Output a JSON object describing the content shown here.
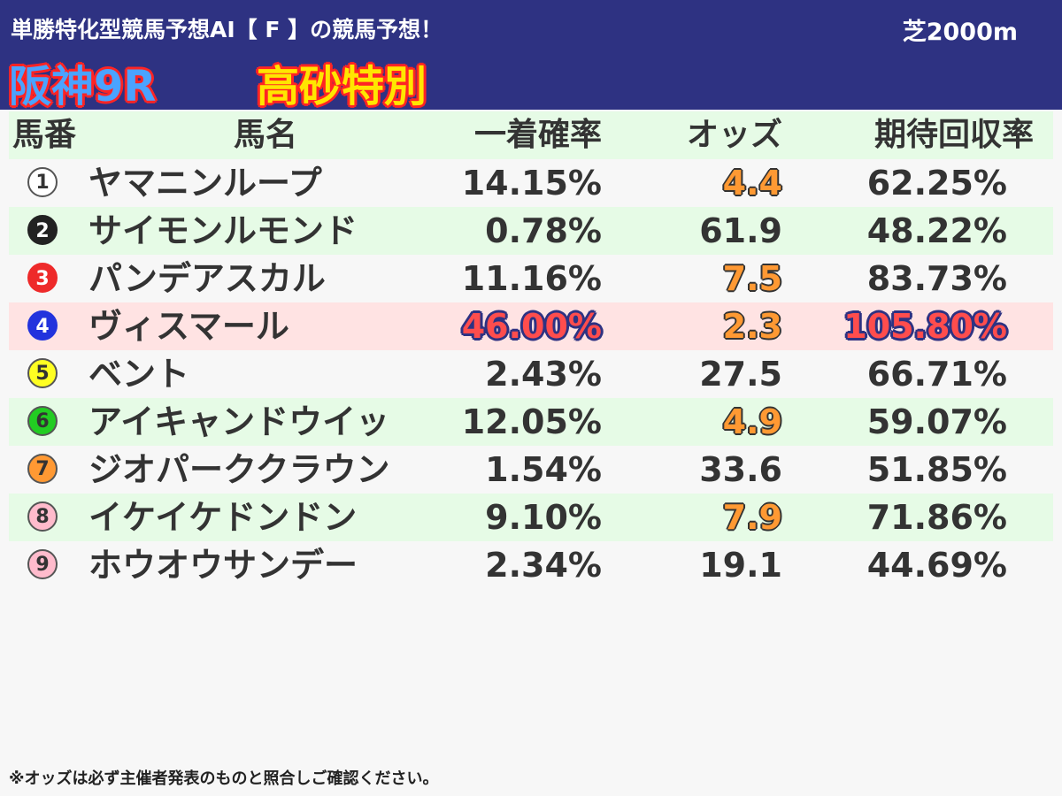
{
  "header": {
    "subtitle": "単勝特化型競馬予想AI【 F 】の競馬予想！",
    "course": "芝2000m",
    "race": "阪神9R",
    "race_name": "高砂特別"
  },
  "columns": {
    "no": "馬番",
    "name": "馬名",
    "prob": "一着確率",
    "odds": "オッズ",
    "ret": "期待回収率"
  },
  "colors": {
    "header_bg": "#2e3282",
    "row_alt_bg": "#e6fbe6",
    "highlight_bg": "#ffe3e3",
    "odds_hot": "#ff9933",
    "best_value": "#ff4d4d"
  },
  "rows": [
    {
      "no": "1",
      "name": "ヤマニンループ",
      "prob": "14.15%",
      "odds": "4.4",
      "ret": "62.25%",
      "circle_bg": "#ffffff",
      "circle_fg": "#333333",
      "circle_border": "#555555",
      "odds_hot": true
    },
    {
      "no": "2",
      "name": "サイモンルモンド",
      "prob": "0.78%",
      "odds": "61.9",
      "ret": "48.22%",
      "circle_bg": "#222222",
      "circle_fg": "#ffffff",
      "circle_border": "#222222"
    },
    {
      "no": "3",
      "name": "パンデアスカル",
      "prob": "11.16%",
      "odds": "7.5",
      "ret": "83.73%",
      "circle_bg": "#ee2a2a",
      "circle_fg": "#ffffff",
      "circle_border": "#ee2a2a",
      "odds_hot": true
    },
    {
      "no": "4",
      "name": "ヴィスマール",
      "prob": "46.00%",
      "odds": "2.3",
      "ret": "105.80%",
      "circle_bg": "#2233dd",
      "circle_fg": "#ffffff",
      "circle_border": "#2233dd",
      "odds_hot": true,
      "highlight": true
    },
    {
      "no": "5",
      "name": "ベント",
      "prob": "2.43%",
      "odds": "27.5",
      "ret": "66.71%",
      "circle_bg": "#ffff22",
      "circle_fg": "#333333",
      "circle_border": "#555555"
    },
    {
      "no": "6",
      "name": "アイキャンドウイッ",
      "prob": "12.05%",
      "odds": "4.9",
      "ret": "59.07%",
      "circle_bg": "#22cc22",
      "circle_fg": "#333333",
      "circle_border": "#555555",
      "odds_hot": true
    },
    {
      "no": "7",
      "name": "ジオパーククラウン",
      "prob": "1.54%",
      "odds": "33.6",
      "ret": "51.85%",
      "circle_bg": "#ff9933",
      "circle_fg": "#333333",
      "circle_border": "#555555"
    },
    {
      "no": "8",
      "name": "イケイケドンドン",
      "prob": "9.10%",
      "odds": "7.9",
      "ret": "71.86%",
      "circle_bg": "#ffbbcc",
      "circle_fg": "#333333",
      "circle_border": "#555555",
      "odds_hot": true
    },
    {
      "no": "9",
      "name": "ホウオウサンデー",
      "prob": "2.34%",
      "odds": "19.1",
      "ret": "44.69%",
      "circle_bg": "#ffbbcc",
      "circle_fg": "#333333",
      "circle_border": "#555555"
    }
  ],
  "footnote": "※オッズは必ず主催者発表のものと照合しご確認ください。"
}
